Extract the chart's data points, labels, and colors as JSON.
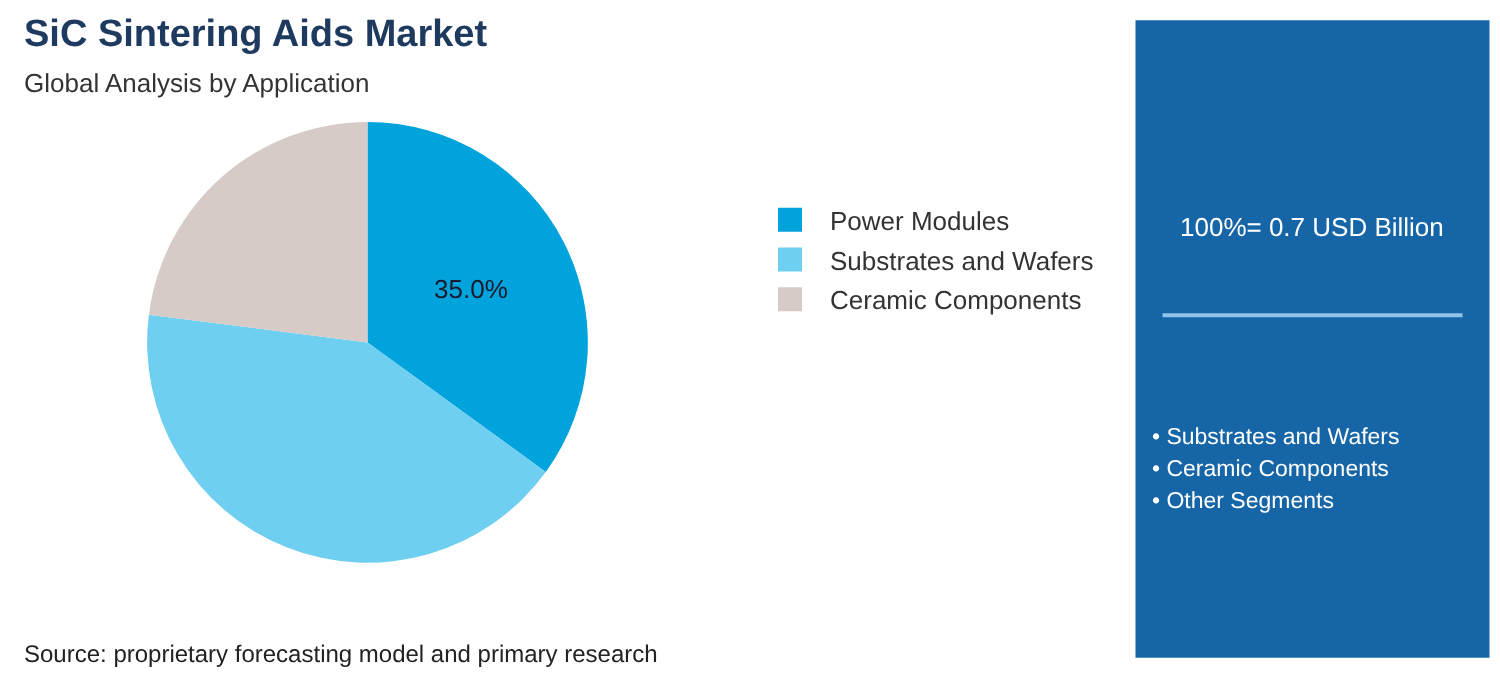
{
  "chart_data": {
    "type": "pie",
    "title": "SiC Sintering Aids Market",
    "subtitle": "Global Analysis by Application",
    "categories": [
      "Power Modules",
      "Substrates and Wafers",
      "Ceramic Components"
    ],
    "values": [
      35,
      42,
      23
    ],
    "colors": [
      "#00a3dc",
      "#6fcff1",
      "#d6cbc7"
    ],
    "value_labels": [
      "35.0%",
      null,
      null
    ],
    "legend": "right",
    "annotations": [
      "100%= 0.7 USD Billion",
      "• Substrates and Wafers",
      "• Ceramic Components",
      "• Other Segments",
      "Source: proprietary forecasting model and primary research"
    ]
  }
}
